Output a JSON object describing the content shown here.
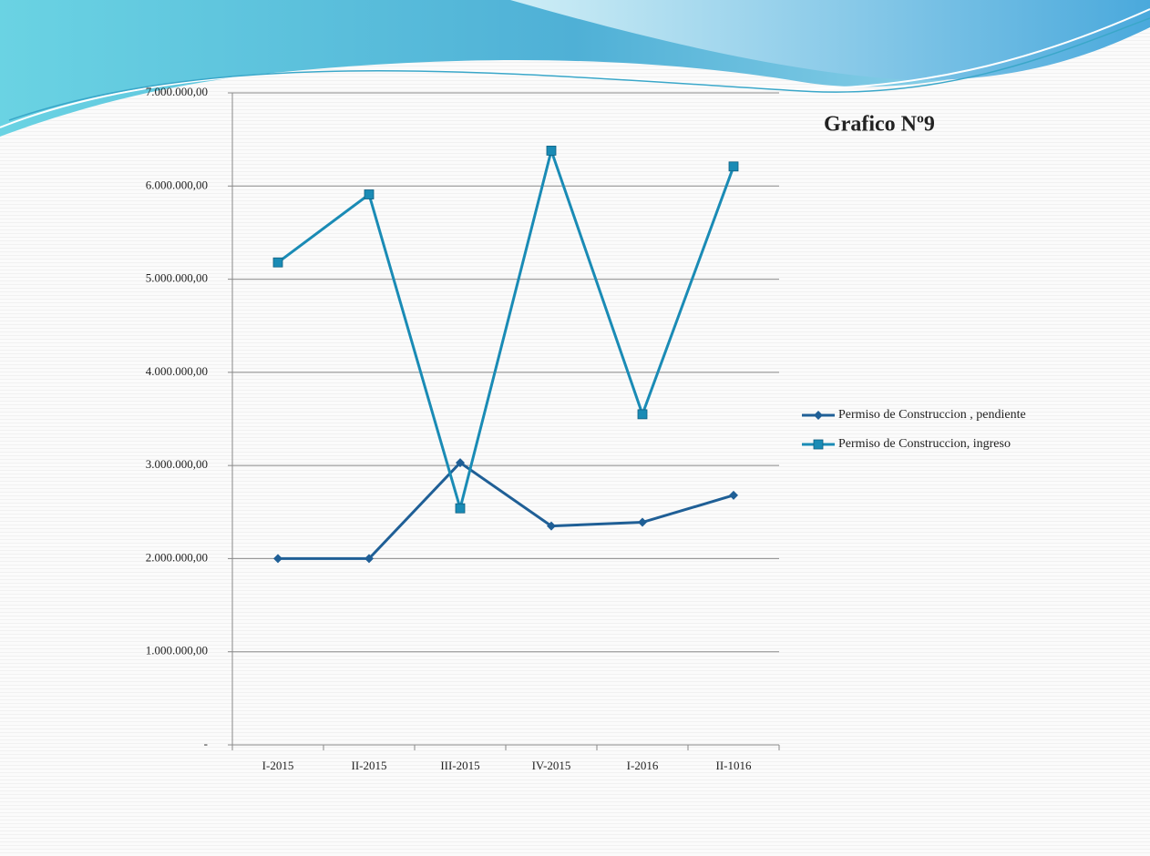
{
  "chart_data": {
    "type": "line",
    "title": "Grafico Nº9",
    "categories": [
      "I-2015",
      "II-2015",
      "III-2015",
      "IV-2015",
      "I-2016",
      "II-1016"
    ],
    "series": [
      {
        "name": "Permiso de Construccion , pendiente",
        "color": "#1f5f96",
        "marker": "diamond",
        "values": [
          2000000,
          2000000,
          3030000,
          2350000,
          2390000,
          2680000
        ]
      },
      {
        "name": "Permiso de Construccion, ingreso",
        "color": "#1a8bb5",
        "marker": "square",
        "values": [
          5180000,
          5910000,
          2540000,
          6380000,
          3550000,
          6210000
        ]
      }
    ],
    "ylim": [
      0,
      7000000
    ],
    "yticks": [
      {
        "value": 0,
        "label": "-"
      },
      {
        "value": 1000000,
        "label": "1.000.000,00"
      },
      {
        "value": 2000000,
        "label": "2.000.000,00"
      },
      {
        "value": 3000000,
        "label": "3.000.000,00"
      },
      {
        "value": 4000000,
        "label": "4.000.000,00"
      },
      {
        "value": 5000000,
        "label": "5.000.000,00"
      },
      {
        "value": 6000000,
        "label": "6.000.000,00"
      },
      {
        "value": 7000000,
        "label": "7.000.000,00"
      }
    ],
    "grid": true,
    "legend": "right"
  }
}
